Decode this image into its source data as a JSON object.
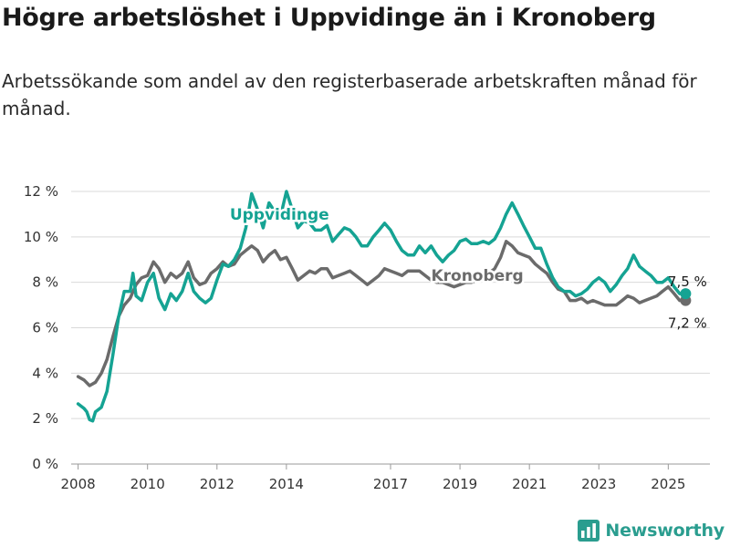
{
  "title": "Högre arbetslöshet i Uppvidinge än i Kronoberg",
  "subtitle": "Arbetssökande som andel av den registerbaserade arbetskraften månad för månad.",
  "brand": {
    "name": "Newsworthy",
    "icon": "newsworthy-chart-icon",
    "color": "#2a9d8f"
  },
  "chart_data": {
    "type": "line",
    "xlabel": "",
    "ylabel": "",
    "ylim": [
      0,
      12
    ],
    "xlim": [
      2007.8,
      2026.2
    ],
    "grid": true,
    "legend": "inline labels",
    "y_ticks": [
      {
        "value": 0,
        "label": "0 %"
      },
      {
        "value": 2,
        "label": "2 %"
      },
      {
        "value": 4,
        "label": "4 %"
      },
      {
        "value": 6,
        "label": "6 %"
      },
      {
        "value": 8,
        "label": "8 %"
      },
      {
        "value": 10,
        "label": "10 %"
      },
      {
        "value": 12,
        "label": "12 %"
      }
    ],
    "x_ticks": [
      {
        "value": 2008,
        "label": "2008"
      },
      {
        "value": 2010,
        "label": "2010"
      },
      {
        "value": 2012,
        "label": "2012"
      },
      {
        "value": 2014,
        "label": "2014"
      },
      {
        "value": 2017,
        "label": "2017"
      },
      {
        "value": 2019,
        "label": "2019"
      },
      {
        "value": 2021,
        "label": "2021"
      },
      {
        "value": 2023,
        "label": "2023"
      },
      {
        "value": 2025,
        "label": "2025"
      }
    ],
    "series": [
      {
        "name": "Kronoberg",
        "color": "#6b6b6b",
        "end_label": "7,2 %",
        "points": [
          [
            2008.0,
            3.85
          ],
          [
            2008.17,
            3.7
          ],
          [
            2008.33,
            3.45
          ],
          [
            2008.5,
            3.6
          ],
          [
            2008.67,
            4.0
          ],
          [
            2008.83,
            4.6
          ],
          [
            2009.0,
            5.6
          ],
          [
            2009.17,
            6.5
          ],
          [
            2009.33,
            7.0
          ],
          [
            2009.5,
            7.3
          ],
          [
            2009.67,
            7.9
          ],
          [
            2009.83,
            8.2
          ],
          [
            2010.0,
            8.3
          ],
          [
            2010.17,
            8.9
          ],
          [
            2010.33,
            8.6
          ],
          [
            2010.5,
            8.0
          ],
          [
            2010.67,
            8.4
          ],
          [
            2010.83,
            8.2
          ],
          [
            2011.0,
            8.4
          ],
          [
            2011.17,
            8.9
          ],
          [
            2011.33,
            8.2
          ],
          [
            2011.5,
            7.9
          ],
          [
            2011.67,
            8.0
          ],
          [
            2011.83,
            8.4
          ],
          [
            2012.0,
            8.6
          ],
          [
            2012.17,
            8.9
          ],
          [
            2012.33,
            8.7
          ],
          [
            2012.5,
            8.8
          ],
          [
            2012.67,
            9.2
          ],
          [
            2012.83,
            9.4
          ],
          [
            2013.0,
            9.6
          ],
          [
            2013.17,
            9.4
          ],
          [
            2013.33,
            8.9
          ],
          [
            2013.5,
            9.2
          ],
          [
            2013.67,
            9.4
          ],
          [
            2013.83,
            9.0
          ],
          [
            2014.0,
            9.1
          ],
          [
            2014.17,
            8.6
          ],
          [
            2014.33,
            8.1
          ],
          [
            2014.5,
            8.3
          ],
          [
            2014.67,
            8.5
          ],
          [
            2014.83,
            8.4
          ],
          [
            2015.0,
            8.6
          ],
          [
            2015.17,
            8.6
          ],
          [
            2015.33,
            8.2
          ],
          [
            2015.5,
            8.3
          ],
          [
            2015.67,
            8.4
          ],
          [
            2015.83,
            8.5
          ],
          [
            2016.0,
            8.3
          ],
          [
            2016.17,
            8.1
          ],
          [
            2016.33,
            7.9
          ],
          [
            2016.5,
            8.1
          ],
          [
            2016.67,
            8.3
          ],
          [
            2016.83,
            8.6
          ],
          [
            2017.0,
            8.5
          ],
          [
            2017.17,
            8.4
          ],
          [
            2017.33,
            8.3
          ],
          [
            2017.5,
            8.5
          ],
          [
            2017.67,
            8.5
          ],
          [
            2017.83,
            8.5
          ],
          [
            2018.0,
            8.3
          ],
          [
            2018.17,
            8.1
          ],
          [
            2018.33,
            8.0
          ],
          [
            2018.5,
            8.0
          ],
          [
            2018.67,
            7.9
          ],
          [
            2018.83,
            7.8
          ],
          [
            2019.0,
            7.9
          ],
          [
            2019.17,
            8.0
          ],
          [
            2019.33,
            8.0
          ],
          [
            2019.5,
            8.1
          ],
          [
            2019.67,
            8.2
          ],
          [
            2019.83,
            8.4
          ],
          [
            2020.0,
            8.6
          ],
          [
            2020.17,
            9.1
          ],
          [
            2020.33,
            9.8
          ],
          [
            2020.5,
            9.6
          ],
          [
            2020.67,
            9.3
          ],
          [
            2020.83,
            9.2
          ],
          [
            2021.0,
            9.1
          ],
          [
            2021.17,
            8.8
          ],
          [
            2021.33,
            8.6
          ],
          [
            2021.5,
            8.4
          ],
          [
            2021.67,
            8.0
          ],
          [
            2021.83,
            7.7
          ],
          [
            2022.0,
            7.6
          ],
          [
            2022.17,
            7.2
          ],
          [
            2022.33,
            7.2
          ],
          [
            2022.5,
            7.3
          ],
          [
            2022.67,
            7.1
          ],
          [
            2022.83,
            7.2
          ],
          [
            2023.0,
            7.1
          ],
          [
            2023.17,
            7.0
          ],
          [
            2023.33,
            7.0
          ],
          [
            2023.5,
            7.0
          ],
          [
            2023.67,
            7.2
          ],
          [
            2023.83,
            7.4
          ],
          [
            2024.0,
            7.3
          ],
          [
            2024.17,
            7.1
          ],
          [
            2024.33,
            7.2
          ],
          [
            2024.5,
            7.3
          ],
          [
            2024.67,
            7.4
          ],
          [
            2024.83,
            7.6
          ],
          [
            2025.0,
            7.8
          ],
          [
            2025.17,
            7.5
          ],
          [
            2025.33,
            7.2
          ],
          [
            2025.5,
            7.2
          ]
        ]
      },
      {
        "name": "Uppvidinge",
        "color": "#15a393",
        "end_label": "7,5 %",
        "points": [
          [
            2008.0,
            2.65
          ],
          [
            2008.17,
            2.45
          ],
          [
            2008.25,
            2.3
          ],
          [
            2008.33,
            1.95
          ],
          [
            2008.42,
            1.9
          ],
          [
            2008.5,
            2.3
          ],
          [
            2008.67,
            2.5
          ],
          [
            2008.83,
            3.2
          ],
          [
            2009.0,
            4.8
          ],
          [
            2009.17,
            6.5
          ],
          [
            2009.33,
            7.6
          ],
          [
            2009.5,
            7.6
          ],
          [
            2009.58,
            8.4
          ],
          [
            2009.67,
            7.4
          ],
          [
            2009.83,
            7.2
          ],
          [
            2010.0,
            8.0
          ],
          [
            2010.17,
            8.4
          ],
          [
            2010.33,
            7.3
          ],
          [
            2010.5,
            6.8
          ],
          [
            2010.67,
            7.5
          ],
          [
            2010.83,
            7.2
          ],
          [
            2011.0,
            7.6
          ],
          [
            2011.17,
            8.4
          ],
          [
            2011.33,
            7.6
          ],
          [
            2011.5,
            7.3
          ],
          [
            2011.67,
            7.1
          ],
          [
            2011.83,
            7.3
          ],
          [
            2012.0,
            8.1
          ],
          [
            2012.17,
            8.8
          ],
          [
            2012.33,
            8.7
          ],
          [
            2012.5,
            9.0
          ],
          [
            2012.67,
            9.5
          ],
          [
            2012.83,
            10.4
          ],
          [
            2013.0,
            11.9
          ],
          [
            2013.17,
            11.2
          ],
          [
            2013.33,
            10.4
          ],
          [
            2013.5,
            11.5
          ],
          [
            2013.67,
            11.1
          ],
          [
            2013.83,
            10.9
          ],
          [
            2014.0,
            12.0
          ],
          [
            2014.17,
            11.2
          ],
          [
            2014.33,
            10.4
          ],
          [
            2014.5,
            10.7
          ],
          [
            2014.67,
            10.6
          ],
          [
            2014.83,
            10.3
          ],
          [
            2015.0,
            10.3
          ],
          [
            2015.17,
            10.5
          ],
          [
            2015.33,
            9.8
          ],
          [
            2015.5,
            10.1
          ],
          [
            2015.67,
            10.4
          ],
          [
            2015.83,
            10.3
          ],
          [
            2016.0,
            10.0
          ],
          [
            2016.17,
            9.6
          ],
          [
            2016.33,
            9.6
          ],
          [
            2016.5,
            10.0
          ],
          [
            2016.67,
            10.3
          ],
          [
            2016.83,
            10.6
          ],
          [
            2017.0,
            10.3
          ],
          [
            2017.17,
            9.8
          ],
          [
            2017.33,
            9.4
          ],
          [
            2017.5,
            9.2
          ],
          [
            2017.67,
            9.2
          ],
          [
            2017.83,
            9.6
          ],
          [
            2018.0,
            9.3
          ],
          [
            2018.17,
            9.6
          ],
          [
            2018.33,
            9.2
          ],
          [
            2018.5,
            8.9
          ],
          [
            2018.67,
            9.2
          ],
          [
            2018.83,
            9.4
          ],
          [
            2019.0,
            9.8
          ],
          [
            2019.17,
            9.9
          ],
          [
            2019.33,
            9.7
          ],
          [
            2019.5,
            9.7
          ],
          [
            2019.67,
            9.8
          ],
          [
            2019.83,
            9.7
          ],
          [
            2020.0,
            9.9
          ],
          [
            2020.17,
            10.4
          ],
          [
            2020.33,
            11.0
          ],
          [
            2020.5,
            11.5
          ],
          [
            2020.67,
            11.0
          ],
          [
            2020.83,
            10.5
          ],
          [
            2021.0,
            10.0
          ],
          [
            2021.17,
            9.5
          ],
          [
            2021.33,
            9.5
          ],
          [
            2021.5,
            8.8
          ],
          [
            2021.67,
            8.2
          ],
          [
            2021.83,
            7.8
          ],
          [
            2022.0,
            7.6
          ],
          [
            2022.17,
            7.6
          ],
          [
            2022.33,
            7.4
          ],
          [
            2022.5,
            7.5
          ],
          [
            2022.67,
            7.7
          ],
          [
            2022.83,
            8.0
          ],
          [
            2023.0,
            8.2
          ],
          [
            2023.17,
            8.0
          ],
          [
            2023.33,
            7.6
          ],
          [
            2023.5,
            7.9
          ],
          [
            2023.67,
            8.3
          ],
          [
            2023.83,
            8.6
          ],
          [
            2024.0,
            9.2
          ],
          [
            2024.17,
            8.7
          ],
          [
            2024.33,
            8.5
          ],
          [
            2024.5,
            8.3
          ],
          [
            2024.67,
            8.0
          ],
          [
            2024.83,
            8.0
          ],
          [
            2025.0,
            8.2
          ],
          [
            2025.17,
            7.8
          ],
          [
            2025.33,
            7.5
          ],
          [
            2025.5,
            7.5
          ]
        ]
      }
    ],
    "annotations": [
      {
        "text": "Uppvidinge",
        "series": "Uppvidinge",
        "at_x": 2013.8,
        "at_y": 11.0
      },
      {
        "text": "Kronoberg",
        "series": "Kronoberg",
        "at_x": 2019.5,
        "at_y": 8.3
      }
    ]
  }
}
